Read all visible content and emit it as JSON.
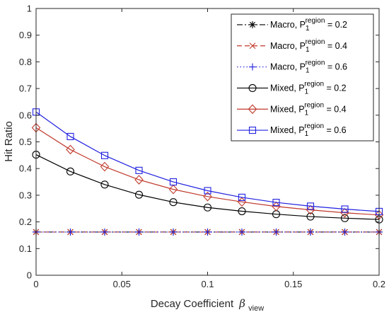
{
  "chart_data": {
    "type": "line",
    "xlabel": "Decay Coefficient",
    "xlabel_symbol": "β",
    "xlabel_symbol_subscript": "view",
    "ylabel": "Hit Ratio",
    "xlim": [
      0,
      0.2
    ],
    "ylim": [
      0,
      1
    ],
    "x_ticks": [
      "0",
      "0.05",
      "0.1",
      "0.15",
      "0.2"
    ],
    "y_ticks": [
      "0",
      "0.1",
      "0.2",
      "0.3",
      "0.4",
      "0.5",
      "0.6",
      "0.7",
      "0.8",
      "0.9",
      "1"
    ],
    "x_tick_values": [
      0,
      0.05,
      0.1,
      0.15,
      0.2
    ],
    "y_tick_values": [
      0,
      0.1,
      0.2,
      0.3,
      0.4,
      0.5,
      0.6,
      0.7,
      0.8,
      0.9,
      1
    ],
    "grid": false,
    "legend_position": "top-right",
    "x": [
      0,
      0.02,
      0.04,
      0.06,
      0.08,
      0.1,
      0.12,
      0.14,
      0.16,
      0.18,
      0.2
    ],
    "series": [
      {
        "name_prefix": "Macro, P",
        "name_sub": "1",
        "name_sup": "region",
        "name_suffix": " = 0.2",
        "color": "#000000",
        "line_style": "dashdot",
        "marker": "asterisk",
        "values": [
          0.162,
          0.162,
          0.162,
          0.162,
          0.162,
          0.162,
          0.162,
          0.162,
          0.162,
          0.162,
          0.162
        ]
      },
      {
        "name_prefix": "Macro, P",
        "name_sub": "1",
        "name_sup": "region",
        "name_suffix": " = 0.4",
        "color": "#c0392b",
        "line_style": "dashed",
        "marker": "x",
        "values": [
          0.162,
          0.162,
          0.162,
          0.162,
          0.162,
          0.162,
          0.162,
          0.162,
          0.162,
          0.162,
          0.162
        ]
      },
      {
        "name_prefix": "Macro, P",
        "name_sub": "1",
        "name_sup": "region",
        "name_suffix": " = 0.6",
        "color": "#2020e0",
        "line_style": "dotted",
        "marker": "plus",
        "values": [
          0.162,
          0.162,
          0.162,
          0.162,
          0.162,
          0.162,
          0.162,
          0.162,
          0.162,
          0.162,
          0.162
        ]
      },
      {
        "name_prefix": "Mixed, P",
        "name_sub": "1",
        "name_sup": "region",
        "name_suffix": " = 0.2",
        "color": "#000000",
        "line_style": "solid",
        "marker": "circle",
        "values": [
          0.452,
          0.389,
          0.34,
          0.302,
          0.274,
          0.254,
          0.24,
          0.229,
          0.22,
          0.214,
          0.209
        ]
      },
      {
        "name_prefix": "Mixed, P",
        "name_sub": "1",
        "name_sup": "region",
        "name_suffix": " = 0.4",
        "color": "#c0392b",
        "line_style": "solid",
        "marker": "diamond",
        "values": [
          0.553,
          0.471,
          0.407,
          0.358,
          0.322,
          0.295,
          0.275,
          0.258,
          0.245,
          0.234,
          0.226
        ]
      },
      {
        "name_prefix": "Mixed, P",
        "name_sub": "1",
        "name_sup": "region",
        "name_suffix": " = 0.6",
        "color": "#2020e0",
        "line_style": "solid",
        "marker": "square",
        "values": [
          0.612,
          0.52,
          0.449,
          0.393,
          0.35,
          0.317,
          0.292,
          0.273,
          0.259,
          0.248,
          0.239
        ]
      }
    ]
  }
}
